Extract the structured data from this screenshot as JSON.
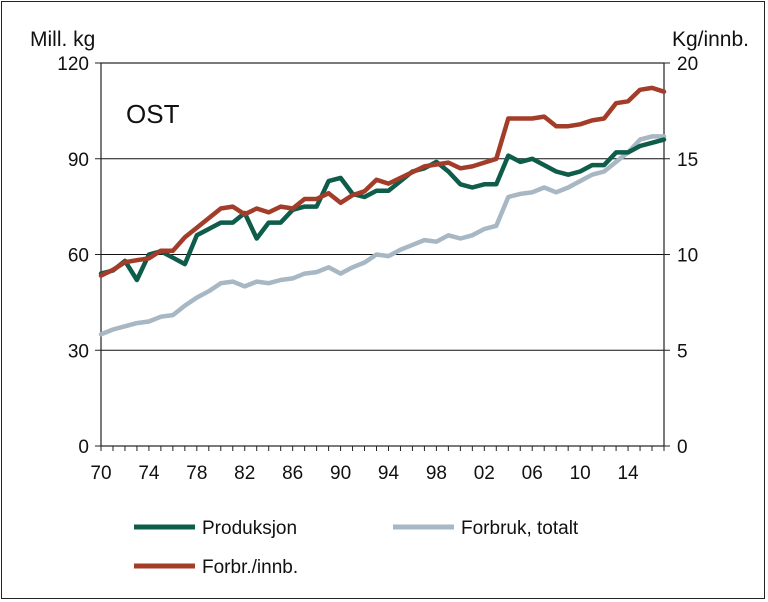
{
  "chart_data": {
    "type": "line",
    "title": "OST",
    "ylabel_left": "Mill. kg",
    "ylabel_right": "Kg/innb.",
    "ylim_left": [
      0,
      120
    ],
    "ylim_right": [
      0,
      20
    ],
    "yticks_left": [
      "0",
      "30",
      "60",
      "90",
      "120"
    ],
    "yticks_right": [
      "0",
      "5",
      "10",
      "15",
      "20"
    ],
    "xlim": [
      1970,
      2017
    ],
    "xticks": [
      "70",
      "74",
      "78",
      "82",
      "86",
      "90",
      "94",
      "98",
      "02",
      "06",
      "10",
      "14"
    ],
    "grid": "horizontal",
    "legend_position": "bottom",
    "x": [
      1970,
      1971,
      1972,
      1973,
      1974,
      1975,
      1976,
      1977,
      1978,
      1979,
      1980,
      1981,
      1982,
      1983,
      1984,
      1985,
      1986,
      1987,
      1988,
      1989,
      1990,
      1991,
      1992,
      1993,
      1994,
      1995,
      1996,
      1997,
      1998,
      1999,
      2000,
      2001,
      2002,
      2003,
      2004,
      2005,
      2006,
      2007,
      2008,
      2009,
      2010,
      2011,
      2012,
      2013,
      2014,
      2015,
      2016,
      2017
    ],
    "series": [
      {
        "name": "Produksjon",
        "axis": "left",
        "color": "#0e5c4a",
        "values": [
          54,
          55,
          58,
          52,
          60,
          61,
          59,
          57,
          66,
          68,
          70,
          70,
          73,
          65,
          70,
          70,
          74,
          75,
          75,
          83,
          84,
          79,
          78,
          80,
          80,
          83,
          86,
          87,
          89,
          86,
          82,
          81,
          82,
          82,
          91,
          89,
          90,
          88,
          86,
          85,
          86,
          88,
          88,
          92,
          92,
          94,
          95,
          96
        ]
      },
      {
        "name": "Forbruk, totalt",
        "axis": "left",
        "color": "#a7b7c3",
        "values": [
          35,
          36.5,
          37.5,
          38.5,
          39,
          40.5,
          41,
          44,
          46.5,
          48.5,
          51,
          51.5,
          50,
          51.5,
          51,
          52,
          52.5,
          54,
          54.5,
          56,
          54,
          56,
          57.5,
          60,
          59.5,
          61.5,
          63,
          64.5,
          64,
          66,
          65,
          66,
          68,
          69,
          78,
          79,
          79.5,
          81,
          79.5,
          81,
          83,
          85,
          86,
          89,
          92,
          96,
          97,
          97
        ]
      },
      {
        "name": "Forbr./innb.",
        "axis": "right",
        "color": "#a33d2a",
        "values": [
          8.9,
          9.2,
          9.6,
          9.7,
          9.8,
          10.2,
          10.2,
          10.9,
          11.4,
          11.9,
          12.4,
          12.5,
          12.1,
          12.4,
          12.2,
          12.5,
          12.4,
          12.9,
          12.9,
          13.2,
          12.7,
          13.1,
          13.3,
          13.9,
          13.7,
          14.0,
          14.3,
          14.6,
          14.7,
          14.8,
          14.5,
          14.6,
          14.8,
          15.0,
          17.1,
          17.1,
          17.1,
          17.2,
          16.7,
          16.7,
          16.8,
          17.0,
          17.1,
          17.9,
          18.0,
          18.6,
          18.7,
          18.5
        ]
      }
    ]
  }
}
